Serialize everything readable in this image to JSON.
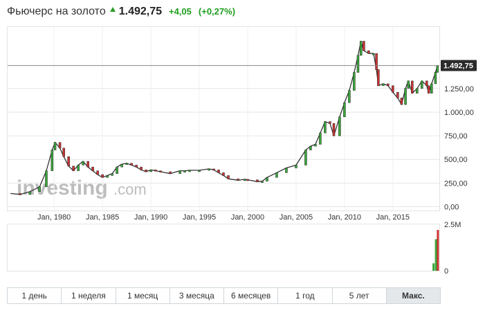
{
  "header": {
    "title": "Фьючерс на золото",
    "price": "1.492,75",
    "change": "+4,05",
    "change_pct": "(+0,27%)"
  },
  "colors": {
    "up": "#3aa63a",
    "down": "#cc3333",
    "line": "#333333",
    "grid": "#e6e6e6"
  },
  "chart_data": {
    "type": "line",
    "watermark": {
      "brand": "investing",
      "suffix": ".com"
    },
    "x_ticks": [
      "Jan, 1980",
      "Jan, 1985",
      "Jan, 1990",
      "Jan, 1995",
      "Jan, 2000",
      "Jan, 2005",
      "Jan, 2010",
      "Jan, 2015"
    ],
    "x_tick_years": [
      1980,
      1985,
      1990,
      1995,
      2000,
      2005,
      2010,
      2015
    ],
    "xlim": [
      1975.2,
      2019.8
    ],
    "y_ticks": [
      "1.250,00",
      "1.000,00",
      "750,00",
      "500,00",
      "250,00",
      "0,00"
    ],
    "y_tick_values": [
      1250,
      1000,
      750,
      500,
      250,
      0
    ],
    "ylim": [
      -40,
      1900
    ],
    "last_price": {
      "value": 1492.75,
      "label": "1.492,75"
    },
    "series": [
      {
        "x": [
          1975.5,
          1976.5,
          1977.5,
          1978.5,
          1979.2,
          1979.8,
          1980.1,
          1980.6,
          1981.0,
          1981.5,
          1982.0,
          1982.5,
          1983.0,
          1983.5,
          1984.0,
          1984.5,
          1985.0,
          1985.5,
          1986.0,
          1986.5,
          1987.0,
          1987.5,
          1988.0,
          1988.5,
          1989.0,
          1989.5,
          1990.0,
          1990.5,
          1991.0,
          1992.0,
          1993.0,
          1993.5,
          1994.0,
          1995.0,
          1996.0,
          1996.5,
          1997.0,
          1997.5,
          1998.0,
          1999.0,
          1999.7,
          2000.0,
          2001.0,
          2001.5,
          2002.0,
          2003.0,
          2004.0,
          2005.0,
          2006.0,
          2006.5,
          2007.0,
          2007.5,
          2008.0,
          2008.5,
          2008.9,
          2009.5,
          2010.0,
          2010.5,
          2011.0,
          2011.4,
          2011.7,
          2012.0,
          2012.5,
          2013.0,
          2013.3,
          2013.5,
          2014.0,
          2014.5,
          2015.0,
          2015.5,
          2015.9,
          2016.3,
          2016.6,
          2017.0,
          2017.5,
          2018.0,
          2018.5,
          2018.7,
          2019.0,
          2019.4,
          2019.6
        ],
        "values": [
          140,
          130,
          160,
          210,
          380,
          600,
          680,
          620,
          530,
          430,
          380,
          440,
          480,
          420,
          380,
          340,
          310,
          330,
          350,
          420,
          450,
          460,
          440,
          420,
          390,
          370,
          390,
          380,
          370,
          350,
          380,
          380,
          385,
          385,
          400,
          390,
          360,
          330,
          295,
          280,
          290,
          285,
          265,
          270,
          310,
          360,
          410,
          440,
          600,
          640,
          660,
          780,
          900,
          880,
          750,
          950,
          1100,
          1230,
          1420,
          1600,
          1750,
          1650,
          1620,
          1620,
          1450,
          1280,
          1300,
          1280,
          1210,
          1150,
          1080,
          1250,
          1330,
          1200,
          1250,
          1330,
          1280,
          1200,
          1300,
          1420,
          1490
        ]
      }
    ],
    "volume": {
      "y_ticks": [
        "2.5M",
        "0"
      ],
      "y_tick_values": [
        2500000,
        0
      ],
      "ylim": [
        0,
        2500000
      ],
      "x": [
        2019.2,
        2019.45,
        2019.65
      ],
      "values": [
        400000,
        1700000,
        2200000
      ]
    }
  },
  "range_buttons": [
    {
      "label": "1 день",
      "active": false
    },
    {
      "label": "1 неделя",
      "active": false
    },
    {
      "label": "1 месяц",
      "active": false
    },
    {
      "label": "3 месяца",
      "active": false
    },
    {
      "label": "6 месяцев",
      "active": false
    },
    {
      "label": "1 год",
      "active": false
    },
    {
      "label": "5 лет",
      "active": false
    },
    {
      "label": "Макс.",
      "active": true
    }
  ]
}
